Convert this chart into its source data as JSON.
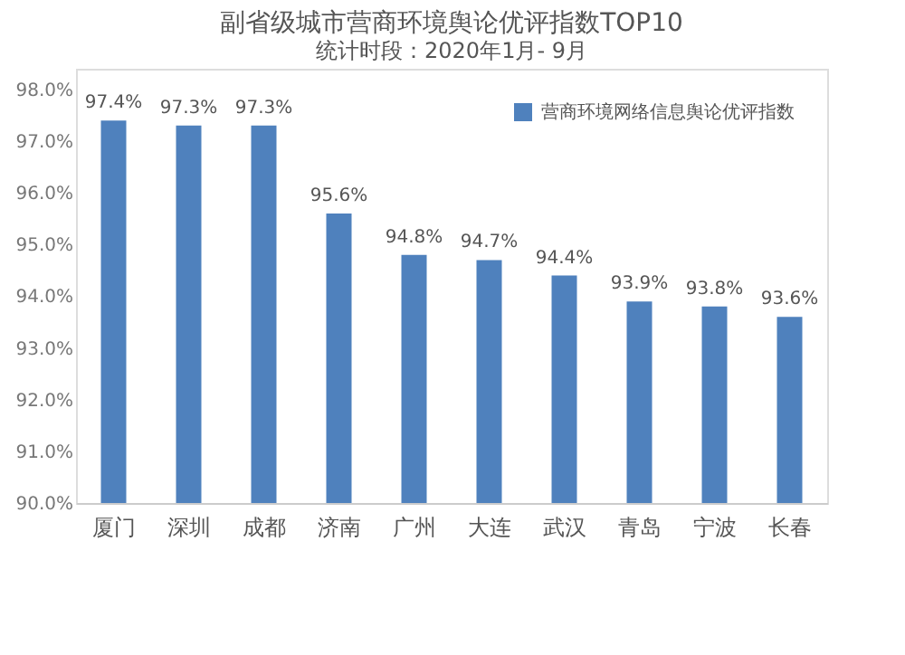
{
  "chart_data": {
    "type": "bar",
    "title": "副省级城市营商环境舆论优评指数TOP10",
    "subtitle": "统计时段：2020年1月- 9月",
    "categories": [
      "厦门",
      "深圳",
      "成都",
      "济南",
      "广州",
      "大连",
      "武汉",
      "青岛",
      "宁波",
      "长春"
    ],
    "series": [
      {
        "name": "营商环境网络信息舆论优评指数",
        "color": "#4f81bd",
        "values": [
          97.4,
          97.3,
          97.3,
          95.6,
          94.8,
          94.7,
          94.4,
          93.9,
          93.8,
          93.6
        ]
      }
    ],
    "value_labels": [
      "97.4%",
      "97.3%",
      "97.3%",
      "95.6%",
      "94.8%",
      "94.7%",
      "94.4%",
      "93.9%",
      "93.8%",
      "93.6%"
    ],
    "ylim": [
      90,
      98.4
    ],
    "yticks": [
      {
        "value": 90,
        "label": "90.0%"
      },
      {
        "value": 91,
        "label": "91.0%"
      },
      {
        "value": 92,
        "label": "92.0%"
      },
      {
        "value": 93,
        "label": "93.0%"
      },
      {
        "value": 94,
        "label": "94.0%"
      },
      {
        "value": 95,
        "label": "95.0%"
      },
      {
        "value": 96,
        "label": "96.0%"
      },
      {
        "value": 97,
        "label": "97.0%"
      },
      {
        "value": 98,
        "label": "98.0%"
      }
    ],
    "grid": false,
    "legend": "top right"
  }
}
